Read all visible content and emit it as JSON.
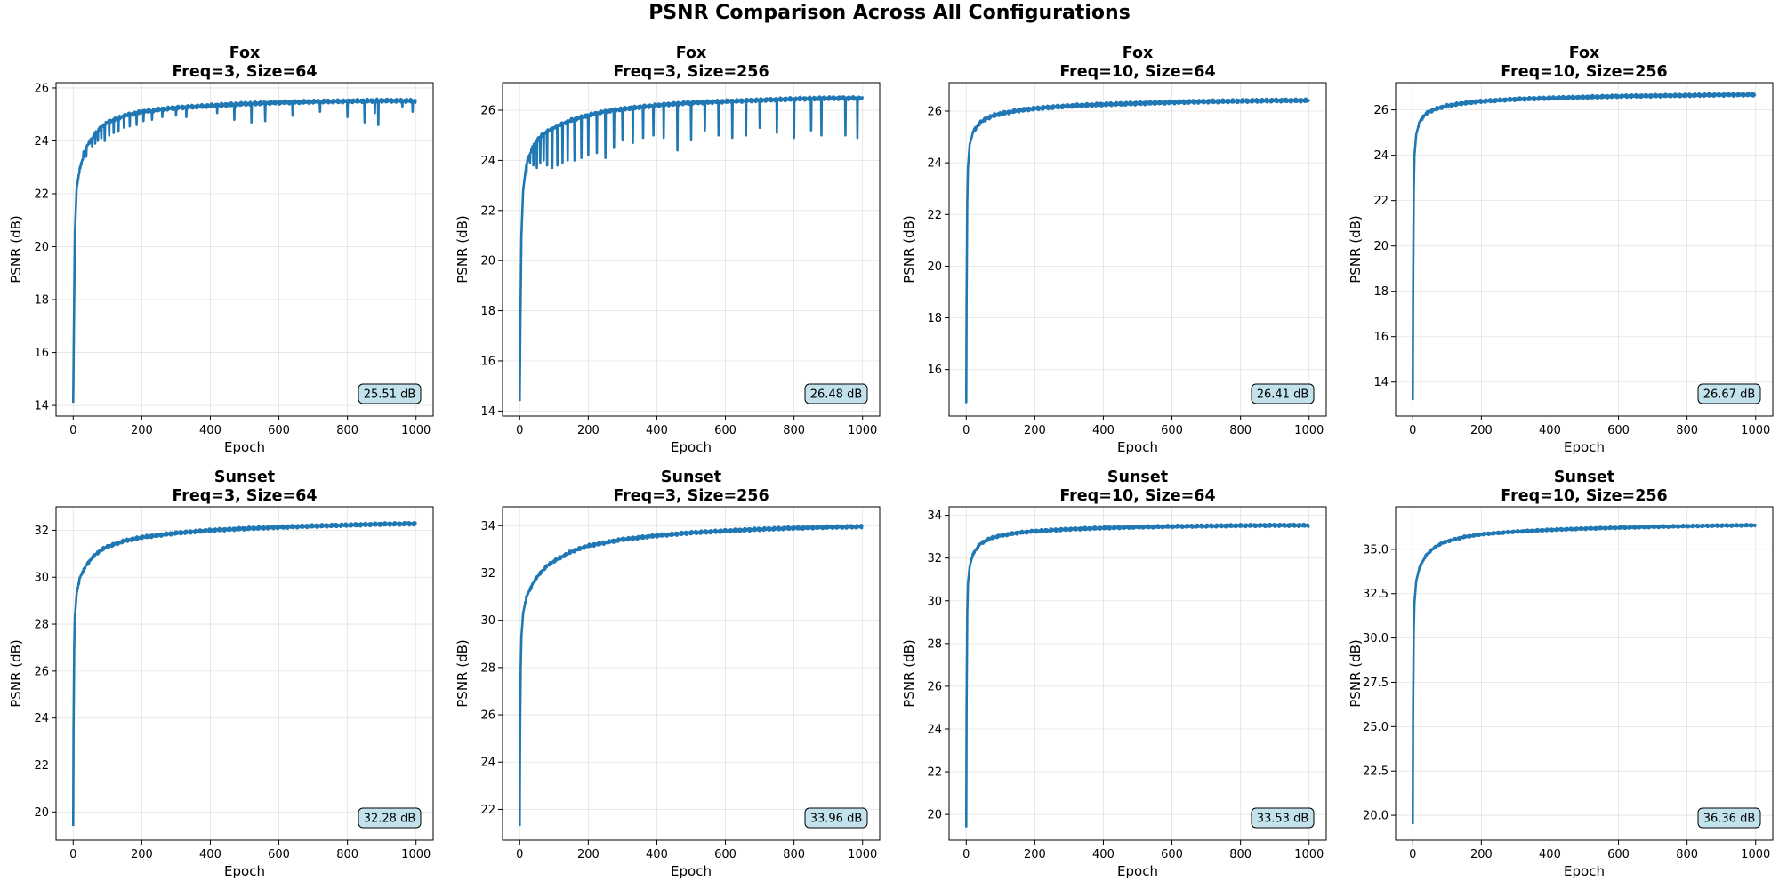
{
  "figure": {
    "title": "PSNR Comparison Across All Configurations",
    "line_color": "#1f77b4",
    "badge_fill": "#add8e6"
  },
  "chart_data": [
    {
      "type": "line",
      "dataset": "Fox",
      "config": "Freq=3, Size=64",
      "xlabel": "Epoch",
      "ylabel": "PSNR (dB)",
      "xlim": [
        -50,
        1050
      ],
      "ylim": [
        13.6,
        26.2
      ],
      "xticks": [
        0,
        200,
        400,
        600,
        800,
        1000
      ],
      "yticks": [
        14,
        16,
        18,
        20,
        22,
        24,
        26
      ],
      "ytick_decimals": 0,
      "final_label": "25.51 dB",
      "series": [
        {
          "name": "PSNR",
          "x": [
            0,
            2,
            5,
            10,
            20,
            40,
            60,
            80,
            100,
            150,
            200,
            250,
            300,
            400,
            500,
            600,
            700,
            800,
            900,
            1000
          ],
          "y": [
            14.1,
            16.8,
            20.5,
            22.2,
            23.0,
            23.8,
            24.2,
            24.5,
            24.7,
            24.95,
            25.1,
            25.18,
            25.25,
            25.33,
            25.4,
            25.45,
            25.48,
            25.5,
            25.52,
            25.51
          ]
        }
      ],
      "dips": [
        [
          22,
          23.1
        ],
        [
          30,
          23.6
        ],
        [
          38,
          23.4
        ],
        [
          46,
          23.9
        ],
        [
          55,
          23.8
        ],
        [
          64,
          23.9
        ],
        [
          72,
          24.0
        ],
        [
          82,
          24.1
        ],
        [
          92,
          24.0
        ],
        [
          105,
          24.2
        ],
        [
          118,
          24.3
        ],
        [
          132,
          24.35
        ],
        [
          148,
          24.5
        ],
        [
          165,
          24.55
        ],
        [
          185,
          24.6
        ],
        [
          205,
          24.75
        ],
        [
          230,
          24.8
        ],
        [
          260,
          24.9
        ],
        [
          300,
          24.95
        ],
        [
          330,
          24.9
        ],
        [
          420,
          25.05
        ],
        [
          470,
          24.8
        ],
        [
          520,
          24.7
        ],
        [
          560,
          24.75
        ],
        [
          640,
          24.95
        ],
        [
          720,
          25.1
        ],
        [
          800,
          24.9
        ],
        [
          850,
          24.7
        ],
        [
          880,
          25.05
        ],
        [
          890,
          24.6
        ],
        [
          960,
          25.3
        ],
        [
          990,
          25.1
        ]
      ]
    },
    {
      "type": "line",
      "dataset": "Fox",
      "config": "Freq=3, Size=256",
      "xlabel": "Epoch",
      "ylabel": "PSNR (dB)",
      "xlim": [
        -50,
        1050
      ],
      "ylim": [
        13.8,
        27.1
      ],
      "xticks": [
        0,
        200,
        400,
        600,
        800,
        1000
      ],
      "yticks": [
        14,
        16,
        18,
        20,
        22,
        24,
        26
      ],
      "ytick_decimals": 0,
      "final_label": "26.48 dB",
      "series": [
        {
          "name": "PSNR",
          "x": [
            0,
            2,
            5,
            10,
            20,
            40,
            60,
            80,
            100,
            150,
            200,
            250,
            300,
            400,
            500,
            600,
            700,
            800,
            900,
            1000
          ],
          "y": [
            14.4,
            17.5,
            21.0,
            22.8,
            23.9,
            24.6,
            24.95,
            25.15,
            25.3,
            25.6,
            25.8,
            25.95,
            26.05,
            26.2,
            26.3,
            26.35,
            26.4,
            26.45,
            26.48,
            26.48
          ]
        }
      ],
      "dips": [
        [
          20,
          23.5
        ],
        [
          30,
          23.9
        ],
        [
          40,
          23.8
        ],
        [
          50,
          23.7
        ],
        [
          60,
          23.9
        ],
        [
          70,
          24.0
        ],
        [
          80,
          23.8
        ],
        [
          95,
          23.7
        ],
        [
          110,
          23.8
        ],
        [
          125,
          23.9
        ],
        [
          140,
          24.0
        ],
        [
          160,
          24.0
        ],
        [
          180,
          24.1
        ],
        [
          200,
          24.2
        ],
        [
          225,
          24.3
        ],
        [
          250,
          24.1
        ],
        [
          275,
          24.5
        ],
        [
          300,
          24.8
        ],
        [
          330,
          24.7
        ],
        [
          360,
          24.9
        ],
        [
          390,
          25.0
        ],
        [
          420,
          24.9
        ],
        [
          460,
          24.4
        ],
        [
          500,
          24.8
        ],
        [
          540,
          25.2
        ],
        [
          580,
          25.0
        ],
        [
          620,
          24.9
        ],
        [
          660,
          25.0
        ],
        [
          700,
          25.3
        ],
        [
          750,
          25.1
        ],
        [
          800,
          24.9
        ],
        [
          850,
          25.2
        ],
        [
          880,
          25.0
        ],
        [
          950,
          25.0
        ],
        [
          985,
          24.9
        ]
      ]
    },
    {
      "type": "line",
      "dataset": "Fox",
      "config": "Freq=10, Size=64",
      "xlabel": "Epoch",
      "ylabel": "PSNR (dB)",
      "xlim": [
        -50,
        1050
      ],
      "ylim": [
        14.2,
        27.1
      ],
      "xticks": [
        0,
        200,
        400,
        600,
        800,
        1000
      ],
      "yticks": [
        16,
        18,
        20,
        22,
        24,
        26
      ],
      "ytick_decimals": 0,
      "final_label": "26.41 dB",
      "series": [
        {
          "name": "PSNR",
          "x": [
            0,
            1,
            3,
            5,
            10,
            20,
            40,
            60,
            80,
            100,
            150,
            200,
            300,
            400,
            500,
            600,
            700,
            800,
            900,
            1000
          ],
          "y": [
            14.7,
            18.5,
            22.5,
            23.8,
            24.7,
            25.2,
            25.55,
            25.72,
            25.83,
            25.9,
            26.02,
            26.1,
            26.2,
            26.26,
            26.3,
            26.34,
            26.37,
            26.39,
            26.41,
            26.41
          ]
        }
      ],
      "dips": []
    },
    {
      "type": "line",
      "dataset": "Fox",
      "config": "Freq=10, Size=256",
      "xlabel": "Epoch",
      "ylabel": "PSNR (dB)",
      "xlim": [
        -50,
        1050
      ],
      "ylim": [
        12.5,
        27.2
      ],
      "xticks": [
        0,
        200,
        400,
        600,
        800,
        1000
      ],
      "yticks": [
        14,
        16,
        18,
        20,
        22,
        24,
        26
      ],
      "ytick_decimals": 0,
      "final_label": "26.67 dB",
      "series": [
        {
          "name": "PSNR",
          "x": [
            0,
            1,
            3,
            5,
            10,
            20,
            40,
            60,
            80,
            100,
            150,
            200,
            300,
            400,
            500,
            600,
            700,
            800,
            900,
            1000
          ],
          "y": [
            13.2,
            18.0,
            22.5,
            24.0,
            24.9,
            25.5,
            25.85,
            26.0,
            26.1,
            26.18,
            26.3,
            26.38,
            26.47,
            26.52,
            26.56,
            26.6,
            26.62,
            26.64,
            26.66,
            26.67
          ]
        }
      ],
      "dips": []
    },
    {
      "type": "line",
      "dataset": "Sunset",
      "config": "Freq=3, Size=64",
      "xlabel": "Epoch",
      "ylabel": "PSNR (dB)",
      "xlim": [
        -50,
        1050
      ],
      "ylim": [
        18.8,
        33.0
      ],
      "xticks": [
        0,
        200,
        400,
        600,
        800,
        1000
      ],
      "yticks": [
        20,
        22,
        24,
        26,
        28,
        30,
        32
      ],
      "ytick_decimals": 0,
      "final_label": "32.28 dB",
      "series": [
        {
          "name": "PSNR",
          "x": [
            0,
            1,
            3,
            5,
            10,
            20,
            40,
            60,
            80,
            100,
            150,
            200,
            300,
            400,
            500,
            600,
            700,
            800,
            900,
            1000
          ],
          "y": [
            19.4,
            23.5,
            27.0,
            28.3,
            29.3,
            30.0,
            30.55,
            30.9,
            31.15,
            31.3,
            31.55,
            31.7,
            31.88,
            32.0,
            32.07,
            32.13,
            32.18,
            32.22,
            32.26,
            32.28
          ]
        }
      ],
      "dips": []
    },
    {
      "type": "line",
      "dataset": "Sunset",
      "config": "Freq=3, Size=256",
      "xlabel": "Epoch",
      "ylabel": "PSNR (dB)",
      "xlim": [
        -50,
        1050
      ],
      "ylim": [
        20.7,
        34.8
      ],
      "xticks": [
        0,
        200,
        400,
        600,
        800,
        1000
      ],
      "yticks": [
        22,
        24,
        26,
        28,
        30,
        32,
        34
      ],
      "ytick_decimals": 0,
      "final_label": "33.96 dB",
      "series": [
        {
          "name": "PSNR",
          "x": [
            0,
            1,
            3,
            5,
            10,
            20,
            40,
            60,
            80,
            100,
            150,
            200,
            300,
            400,
            500,
            600,
            700,
            800,
            900,
            1000
          ],
          "y": [
            21.3,
            25.0,
            28.0,
            29.3,
            30.3,
            31.0,
            31.6,
            32.0,
            32.3,
            32.5,
            32.9,
            33.15,
            33.42,
            33.58,
            33.7,
            33.78,
            33.85,
            33.9,
            33.94,
            33.96
          ]
        }
      ],
      "dips": []
    },
    {
      "type": "line",
      "dataset": "Sunset",
      "config": "Freq=10, Size=64",
      "xlabel": "Epoch",
      "ylabel": "PSNR (dB)",
      "xlim": [
        -50,
        1050
      ],
      "ylim": [
        18.8,
        34.4
      ],
      "xticks": [
        0,
        200,
        400,
        600,
        800,
        1000
      ],
      "yticks": [
        20,
        22,
        24,
        26,
        28,
        30,
        32,
        34
      ],
      "ytick_decimals": 0,
      "final_label": "33.53 dB",
      "series": [
        {
          "name": "PSNR",
          "x": [
            0,
            1,
            3,
            5,
            10,
            20,
            40,
            60,
            80,
            100,
            150,
            200,
            300,
            400,
            500,
            600,
            700,
            800,
            900,
            1000
          ],
          "y": [
            19.4,
            25.0,
            29.5,
            30.8,
            31.6,
            32.2,
            32.65,
            32.85,
            32.97,
            33.05,
            33.18,
            33.26,
            33.35,
            33.41,
            33.45,
            33.48,
            33.5,
            33.52,
            33.53,
            33.53
          ]
        }
      ],
      "dips": []
    },
    {
      "type": "line",
      "dataset": "Sunset",
      "config": "Freq=10, Size=256",
      "xlabel": "Epoch",
      "ylabel": "PSNR (dB)",
      "xlim": [
        -50,
        1050
      ],
      "ylim": [
        18.6,
        37.4
      ],
      "xticks": [
        0,
        200,
        400,
        600,
        800,
        1000
      ],
      "yticks": [
        20.0,
        22.5,
        25.0,
        27.5,
        30.0,
        32.5,
        35.0
      ],
      "ytick_decimals": 1,
      "final_label": "36.36 dB",
      "series": [
        {
          "name": "PSNR",
          "x": [
            0,
            1,
            3,
            5,
            10,
            20,
            40,
            60,
            80,
            100,
            150,
            200,
            300,
            400,
            500,
            600,
            700,
            800,
            900,
            1000
          ],
          "y": [
            19.5,
            26.0,
            30.5,
            32.0,
            33.2,
            34.0,
            34.7,
            35.05,
            35.3,
            35.45,
            35.7,
            35.85,
            36.0,
            36.1,
            36.17,
            36.22,
            36.27,
            36.31,
            36.34,
            36.36
          ]
        }
      ],
      "dips": []
    }
  ]
}
